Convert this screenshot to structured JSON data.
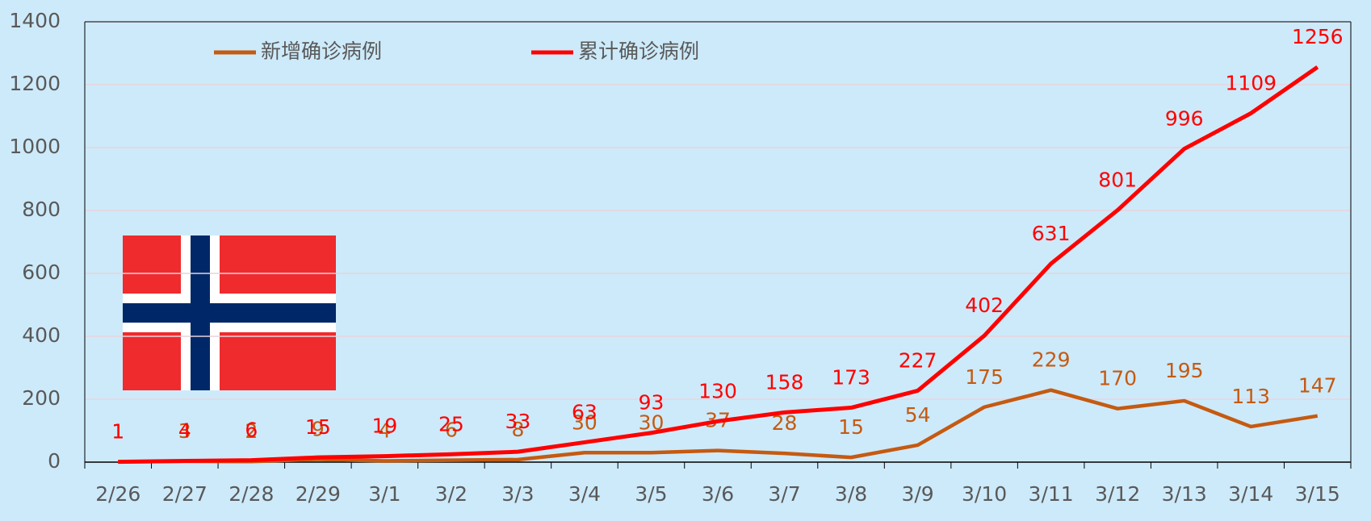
{
  "chart_data": {
    "type": "line",
    "categories": [
      "2/26",
      "2/27",
      "2/28",
      "2/29",
      "3/1",
      "3/2",
      "3/3",
      "3/4",
      "3/5",
      "3/6",
      "3/7",
      "3/8",
      "3/9",
      "3/10",
      "3/11",
      "3/12",
      "3/13",
      "3/14",
      "3/15"
    ],
    "series": [
      {
        "name": "新增确诊病例",
        "color": "#c55a11",
        "values": [
          1,
          3,
          2,
          9,
          4,
          6,
          8,
          30,
          30,
          37,
          28,
          15,
          54,
          175,
          229,
          170,
          195,
          113,
          147
        ]
      },
      {
        "name": "累计确诊病例",
        "color": "#ff0000",
        "values": [
          1,
          4,
          6,
          15,
          19,
          25,
          33,
          63,
          93,
          130,
          158,
          173,
          227,
          402,
          631,
          801,
          996,
          1109,
          1256
        ]
      }
    ],
    "ylim": [
      0,
      1400
    ],
    "yticks": [
      0,
      200,
      400,
      600,
      800,
      1000,
      1200,
      1400
    ],
    "grid": true
  }
}
